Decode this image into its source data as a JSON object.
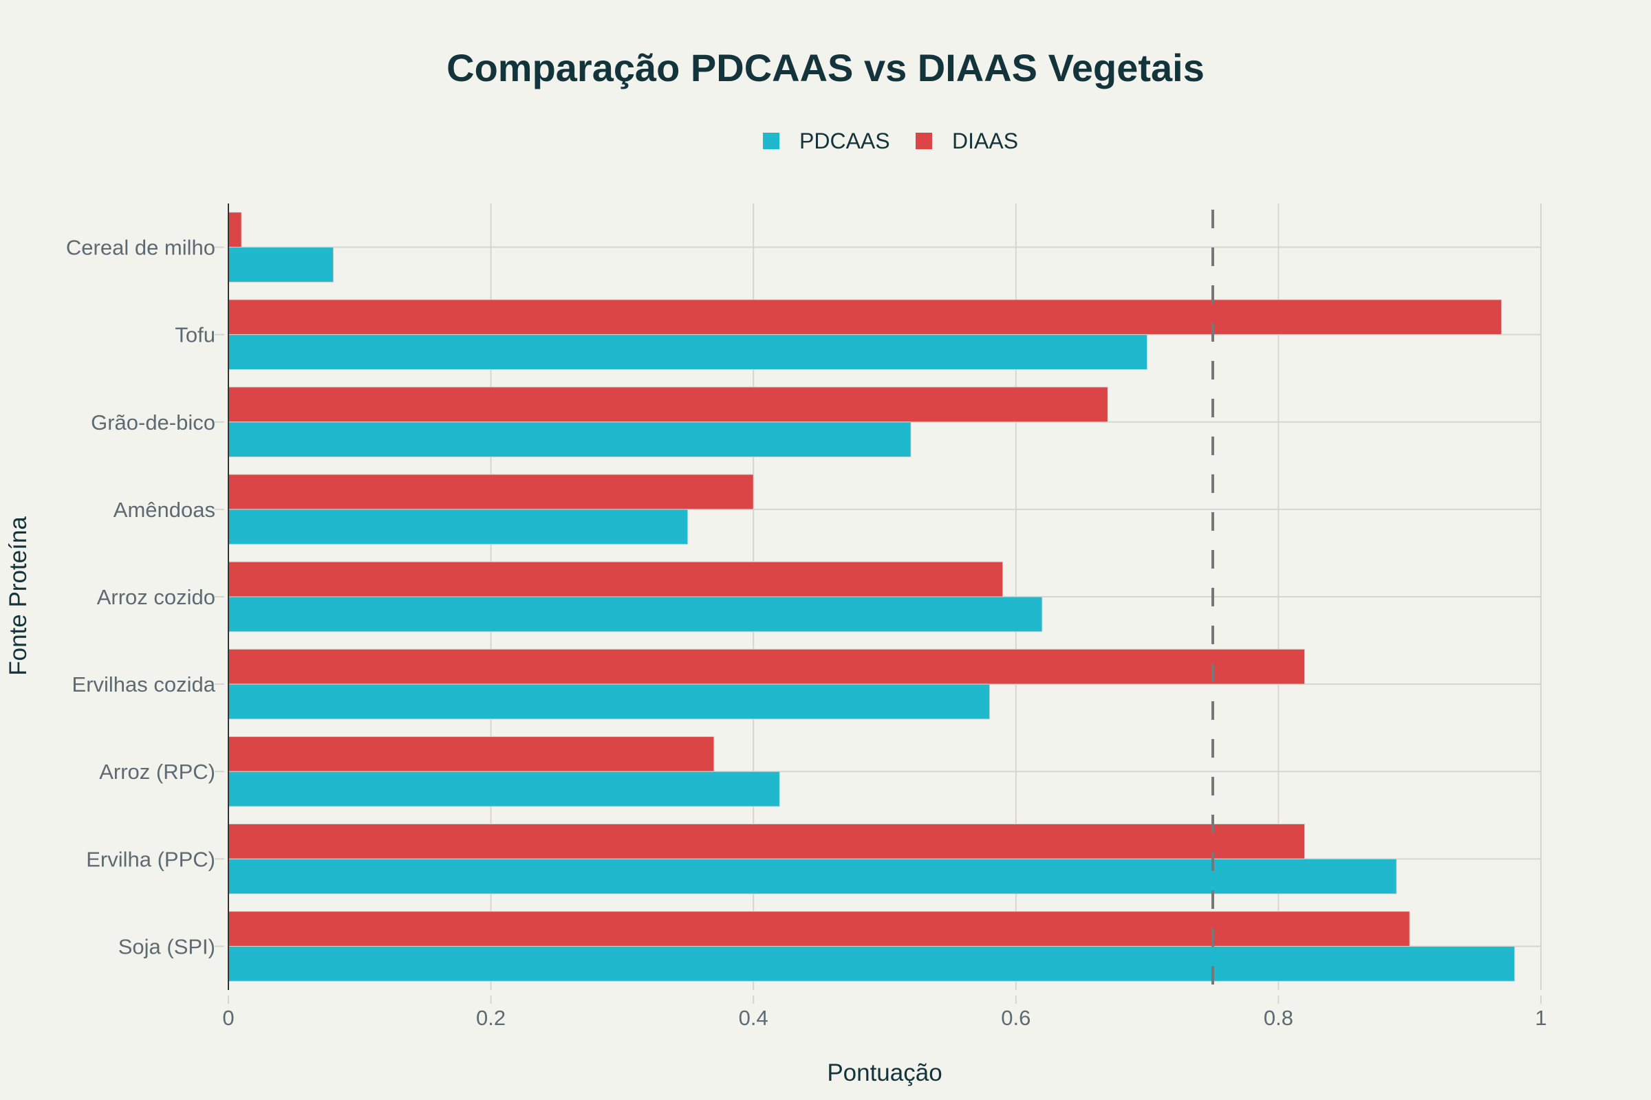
{
  "chart_data": {
    "type": "bar",
    "orientation": "horizontal",
    "title": "Comparação PDCAAS vs DIAAS Vegetais",
    "xlabel": "Pontuação",
    "ylabel": "Fonte Proteína",
    "xlim": [
      0,
      1
    ],
    "xticks": [
      0,
      0.2,
      0.4,
      0.6,
      0.8,
      1
    ],
    "xtick_labels": [
      "0",
      "0.2",
      "0.4",
      "0.6",
      "0.8",
      "1"
    ],
    "grid": true,
    "legend_position": "top-center",
    "categories": [
      "Cereal de milho",
      "Tofu",
      "Grão-de-bico",
      "Amêndoas",
      "Arroz cozido",
      "Ervilhas cozida",
      "Arroz (RPC)",
      "Ervilha (PPC)",
      "Soja (SPI)"
    ],
    "series": [
      {
        "name": "PDCAAS",
        "color": "#1fb8cd",
        "values": [
          0.08,
          0.7,
          0.52,
          0.35,
          0.62,
          0.58,
          0.42,
          0.89,
          0.98
        ]
      },
      {
        "name": "DIAAS",
        "color": "#db4545",
        "values": [
          0.01,
          0.97,
          0.67,
          0.4,
          0.59,
          0.82,
          0.37,
          0.82,
          0.9
        ]
      }
    ],
    "reference_line": {
      "x": 0.75,
      "style": "dashed",
      "color": "#777777"
    }
  }
}
